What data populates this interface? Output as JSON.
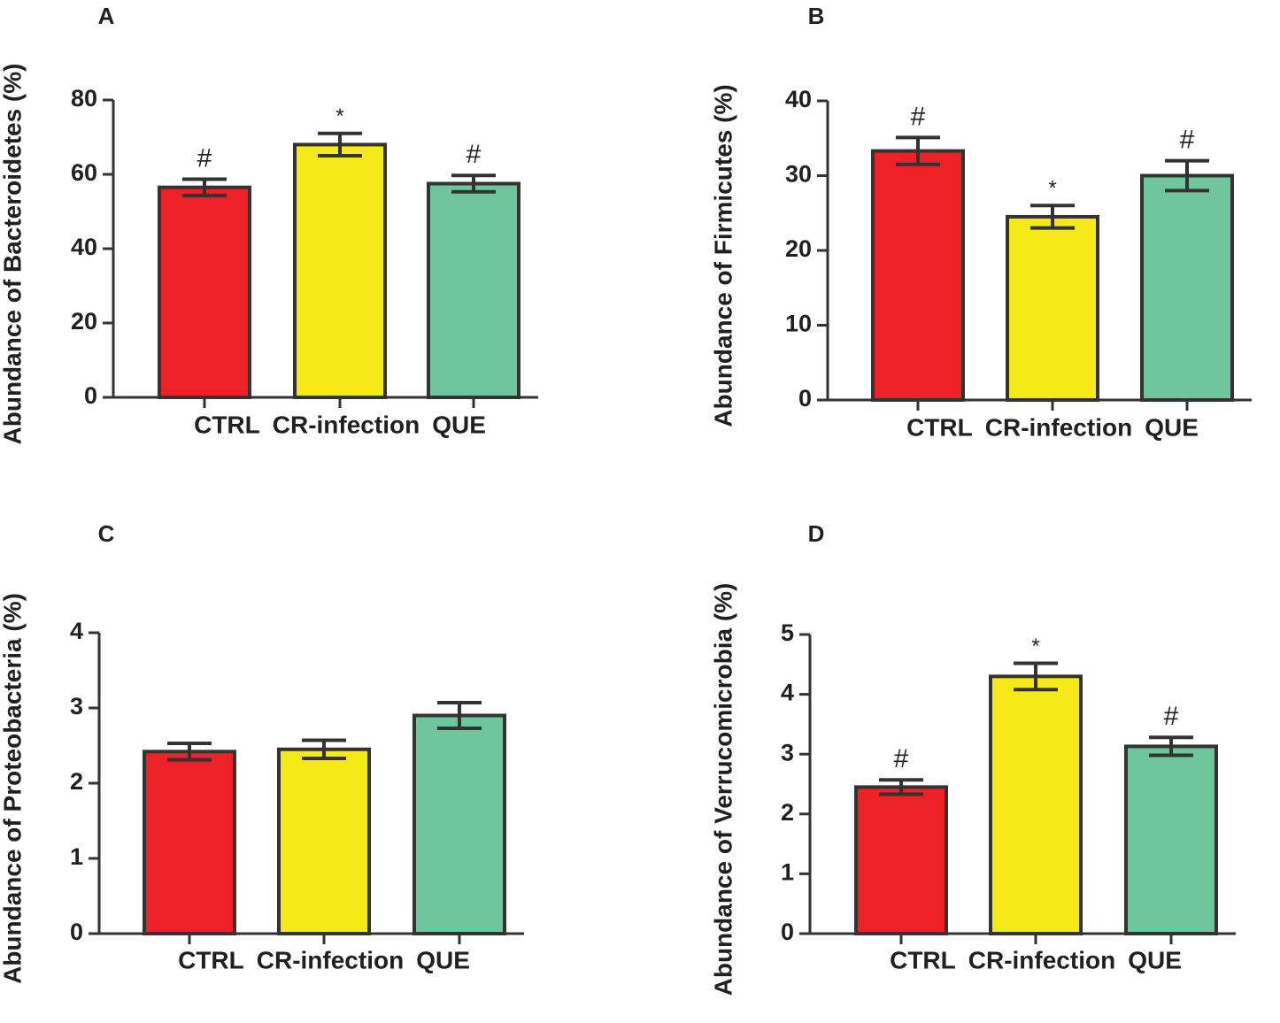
{
  "colors": {
    "ctrl": "#ec2227",
    "cr_infection": "#f5e917",
    "que": "#70c69c",
    "stroke": "#333333",
    "text": "#231f20"
  },
  "chart_data": [
    {
      "panel": "A",
      "type": "bar",
      "ylabel": "Abundance of Bacteroidetes (%)",
      "categories": [
        "CTRL",
        "CR-infection",
        "QUE"
      ],
      "values": [
        56.5,
        68,
        57.5
      ],
      "errors": [
        2.2,
        3,
        2.2
      ],
      "annotations": [
        "#",
        "*",
        "#"
      ],
      "ylim": [
        0,
        80
      ],
      "yticks": [
        0,
        20,
        40,
        60,
        80
      ]
    },
    {
      "panel": "B",
      "type": "bar",
      "ylabel": "Abundance of Firmicutes (%)",
      "categories": [
        "CTRL",
        "CR-infection",
        "QUE"
      ],
      "values": [
        33.3,
        24.5,
        30
      ],
      "errors": [
        1.8,
        1.5,
        2
      ],
      "annotations": [
        "#",
        "*",
        "#"
      ],
      "ylim": [
        0,
        40
      ],
      "yticks": [
        0,
        10,
        20,
        30,
        40
      ]
    },
    {
      "panel": "C",
      "type": "bar",
      "ylabel": "Abundance of Proteobacteria (%)",
      "categories": [
        "CTRL",
        "CR-infection",
        "QUE"
      ],
      "values": [
        2.42,
        2.45,
        2.9
      ],
      "errors": [
        0.11,
        0.12,
        0.17
      ],
      "annotations": [
        "",
        "",
        ""
      ],
      "ylim": [
        0,
        4
      ],
      "yticks": [
        0,
        1,
        2,
        3,
        4
      ]
    },
    {
      "panel": "D",
      "type": "bar",
      "ylabel": "Abundance of Verrucomicrobia (%)",
      "categories": [
        "CTRL",
        "CR-infection",
        "QUE"
      ],
      "values": [
        2.45,
        4.3,
        3.13
      ],
      "errors": [
        0.12,
        0.22,
        0.15
      ],
      "annotations": [
        "#",
        "*",
        "#"
      ],
      "ylim": [
        0,
        5
      ],
      "yticks": [
        0,
        1,
        2,
        3,
        4,
        5
      ]
    }
  ]
}
